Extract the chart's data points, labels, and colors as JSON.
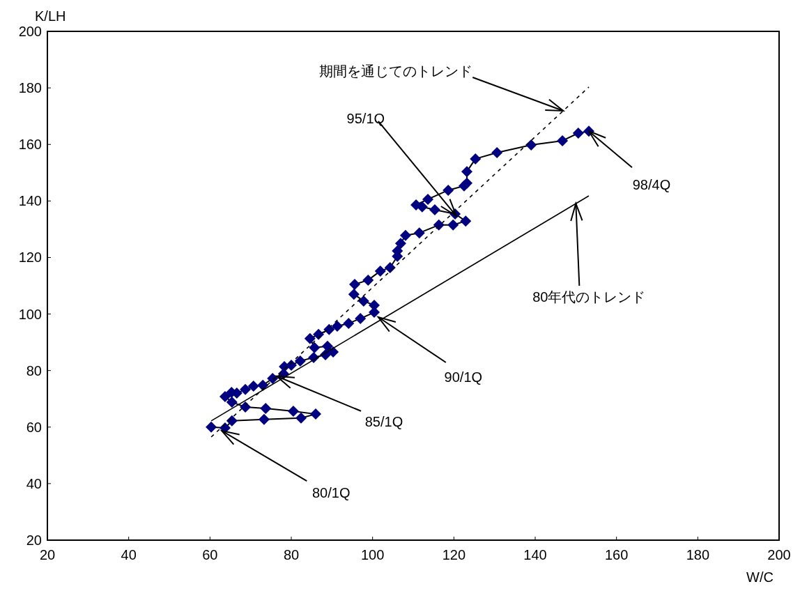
{
  "chart_data": {
    "type": "line",
    "xlabel": "W/C",
    "ylabel": "K/LH",
    "xlim": [
      20,
      200
    ],
    "ylim": [
      20,
      200
    ],
    "xticks": [
      20,
      40,
      60,
      80,
      100,
      120,
      140,
      160,
      180,
      200
    ],
    "yticks": [
      20,
      40,
      60,
      80,
      100,
      120,
      140,
      160,
      180,
      200
    ],
    "grid": false,
    "series": [
      {
        "type": "line",
        "color": "#000080",
        "marker": "diamond",
        "line_style": "solid",
        "x": [
          60.3,
          63.7,
          65.4,
          73.3,
          82.4,
          86.0,
          80.5,
          73.7,
          68.7,
          65.4,
          63.7,
          65.3,
          66.6,
          68.7,
          70.7,
          73.0,
          75.4,
          78.1,
          78.3,
          80.0,
          82.2,
          85.5,
          88.4,
          90.3,
          88.9,
          85.7,
          84.6,
          86.7,
          89.3,
          91.3,
          94.1,
          97.0,
          100.4,
          100.4,
          97.8,
          95.4,
          95.6,
          98.9,
          101.9,
          104.3,
          106.1,
          106.1,
          106.9,
          108.1,
          111.5,
          116.3,
          119.8,
          122.9,
          120.3,
          115.3,
          112.2,
          110.7,
          113.6,
          118.6,
          122.5,
          123.2,
          123.2,
          125.3,
          130.6,
          139.0,
          146.7,
          150.6,
          153.2
        ],
        "values": [
          60.0,
          59.7,
          62.2,
          62.7,
          63.2,
          64.6,
          65.6,
          66.6,
          67.1,
          68.8,
          70.8,
          72.3,
          72.0,
          73.3,
          74.5,
          74.8,
          77.2,
          78.9,
          81.4,
          81.9,
          83.4,
          84.6,
          85.6,
          86.6,
          88.6,
          88.1,
          91.3,
          92.8,
          94.5,
          95.7,
          96.7,
          98.4,
          100.6,
          103.1,
          104.6,
          107.0,
          110.5,
          112.0,
          115.2,
          116.4,
          120.4,
          122.3,
          125.0,
          127.8,
          128.7,
          131.5,
          131.5,
          132.9,
          135.4,
          136.9,
          137.9,
          138.6,
          140.6,
          143.8,
          145.3,
          146.3,
          150.4,
          154.9,
          157.1,
          159.8,
          161.3,
          164.0,
          164.7
        ]
      },
      {
        "type": "line",
        "color": "#000000",
        "marker": "none",
        "line_style": "dashed",
        "x": [
          60.3,
          153.2
        ],
        "values": [
          56.5,
          180.3
        ]
      },
      {
        "type": "line",
        "color": "#000000",
        "marker": "none",
        "line_style": "solid",
        "x": [
          60.3,
          153.2
        ],
        "values": [
          62.2,
          141.8
        ]
      }
    ],
    "annotations": [
      {
        "text": "期間を通じてのトレンド",
        "x": 146.9,
        "y": 171.9
      },
      {
        "text": "95/1Q",
        "x": 120.6,
        "y": 134.7
      },
      {
        "text": "98/4Q",
        "x": 153.2,
        "y": 164.7
      },
      {
        "text": "80年代のトレンド",
        "x": 150.0,
        "y": 139.1
      },
      {
        "text": "90/1Q",
        "x": 101.4,
        "y": 98.9
      },
      {
        "text": "85/1Q",
        "x": 76.4,
        "y": 78.0
      },
      {
        "text": "80/1Q",
        "x": 62.9,
        "y": 58.7
      }
    ]
  }
}
